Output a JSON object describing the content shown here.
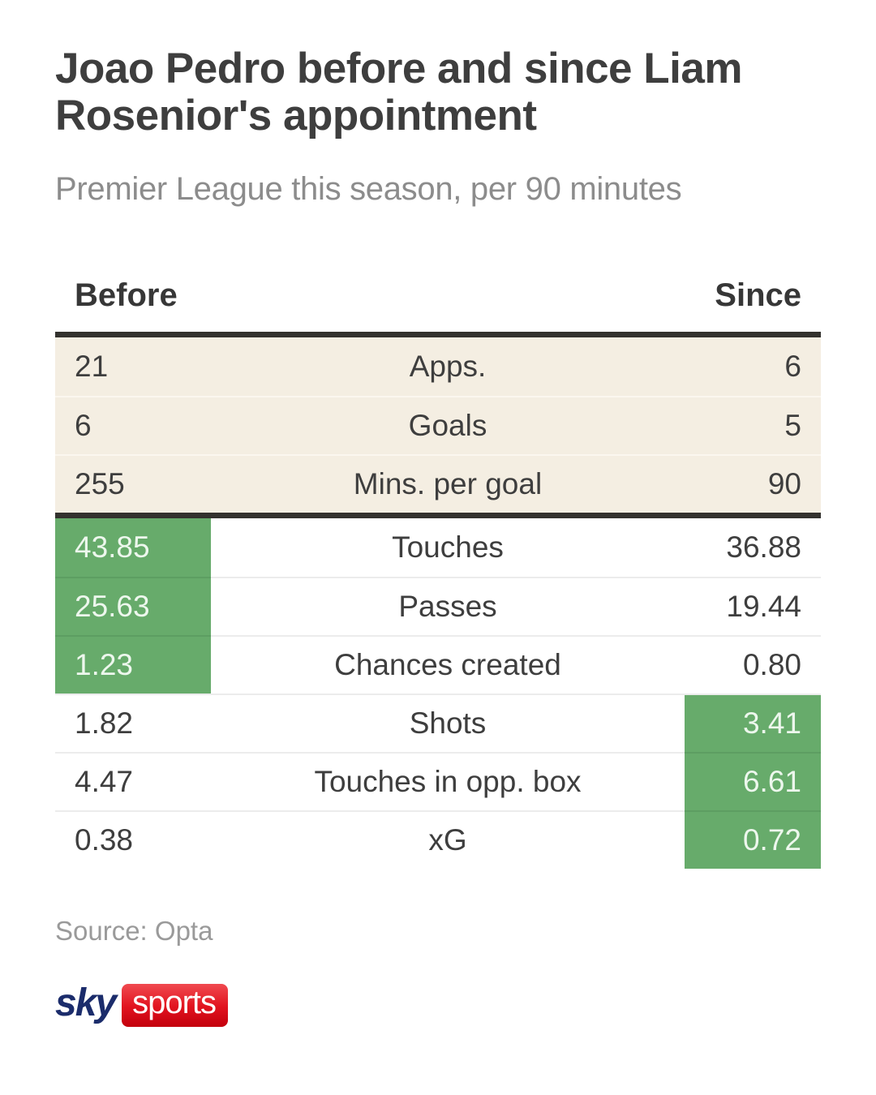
{
  "header": {
    "title_lines": [
      "Joao Pedro before and since Liam",
      "Rosenior's appointment"
    ],
    "subtitle": "Premier League this season, per 90 minutes"
  },
  "table": {
    "col_before": "Before",
    "col_since": "Since",
    "sections": [
      {
        "style": "beige",
        "rows": [
          {
            "before": "21",
            "label": "Apps.",
            "since": "6",
            "highlight": "none"
          },
          {
            "before": "6",
            "label": "Goals",
            "since": "5",
            "highlight": "none"
          },
          {
            "before": "255",
            "label": "Mins. per goal",
            "since": "90",
            "highlight": "none"
          }
        ]
      },
      {
        "style": "white",
        "rows": [
          {
            "before": "43.85",
            "label": "Touches",
            "since": "36.88",
            "highlight": "before"
          },
          {
            "before": "25.63",
            "label": "Passes",
            "since": "19.44",
            "highlight": "before"
          },
          {
            "before": "1.23",
            "label": "Chances created",
            "since": "0.80",
            "highlight": "before"
          },
          {
            "before": "1.82",
            "label": "Shots",
            "since": "3.41",
            "highlight": "since"
          },
          {
            "before": "4.47",
            "label": "Touches in opp. box",
            "since": "6.61",
            "highlight": "since"
          },
          {
            "before": "0.38",
            "label": "xG",
            "since": "0.72",
            "highlight": "since"
          }
        ]
      }
    ]
  },
  "footer": {
    "source": "Source: Opta",
    "logo": {
      "sky": "sky",
      "sports": "sports"
    }
  },
  "colors": {
    "highlight_green": "#67ab6b",
    "beige_row": "#f4eee2",
    "divider_dark": "#33322e",
    "title_text": "#3e3e3e",
    "subtitle_text": "#8c8c8c",
    "sky_navy": "#1b2c6b",
    "sports_red": "#e21420"
  },
  "chart_data": {
    "type": "table",
    "title": "Joao Pedro before and since Liam Rosenior's appointment",
    "subtitle": "Premier League this season, per 90 minutes",
    "categories": [
      "Apps.",
      "Goals",
      "Mins. per goal",
      "Touches",
      "Passes",
      "Chances created",
      "Shots",
      "Touches in opp. box",
      "xG"
    ],
    "series": [
      {
        "name": "Before",
        "values": [
          21,
          6,
          255,
          43.85,
          25.63,
          1.23,
          1.82,
          4.47,
          0.38
        ]
      },
      {
        "name": "Since",
        "values": [
          6,
          5,
          90,
          36.88,
          19.44,
          0.8,
          3.41,
          6.61,
          0.72
        ]
      }
    ],
    "highlighted_cells": {
      "Before": [
        "Touches",
        "Passes",
        "Chances created"
      ],
      "Since": [
        "Shots",
        "Touches in opp. box",
        "xG"
      ]
    },
    "source": "Opta"
  }
}
